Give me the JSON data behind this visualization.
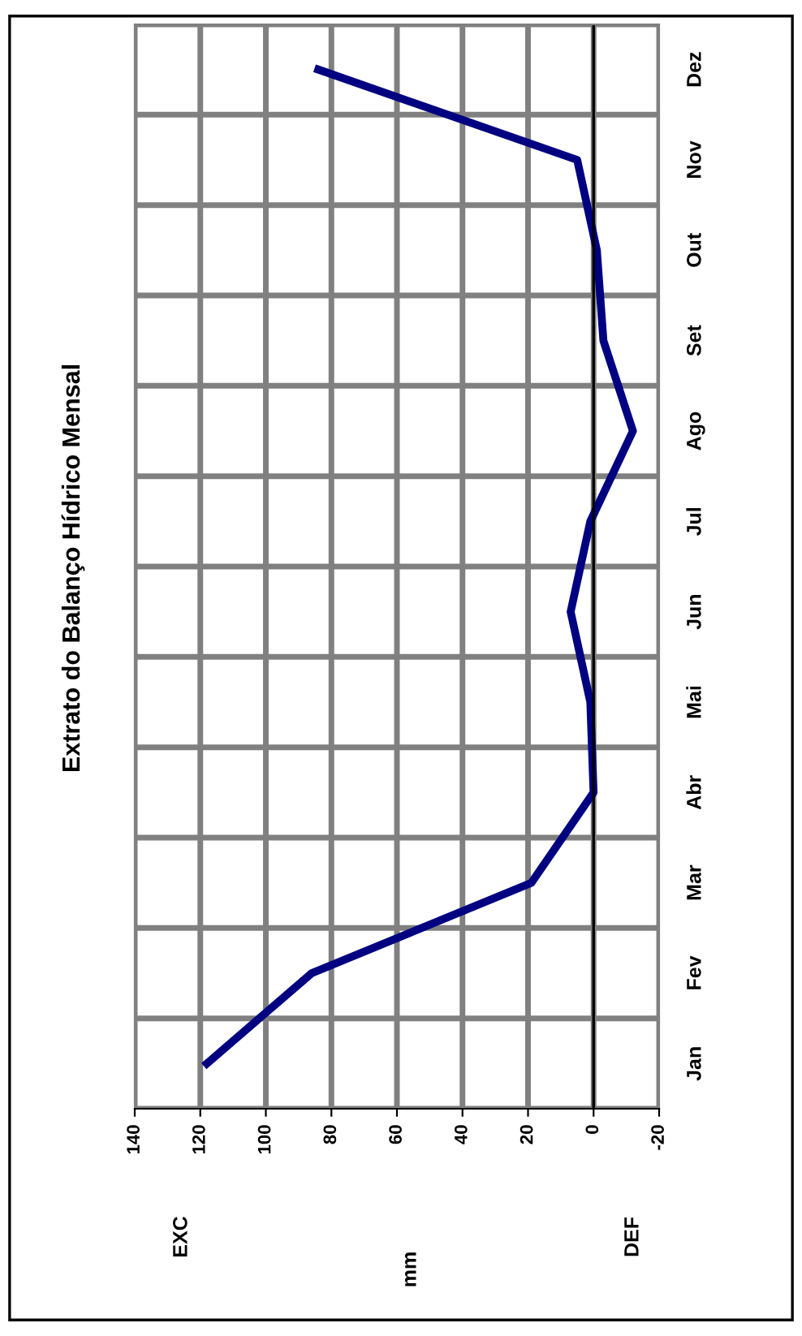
{
  "chart_data": {
    "type": "line",
    "title": "Extrato do Balanço Hídrico Mensal",
    "ylabel": "mm",
    "categories": [
      "Dez",
      "Nov",
      "Out",
      "Set",
      "Ago",
      "Jul",
      "Jun",
      "Mai",
      "Abr",
      "Mar",
      "Fev",
      "Jan"
    ],
    "series": [
      {
        "color": "#000080",
        "values": [
          84,
          5,
          -1,
          -3,
          -12,
          1,
          7,
          1,
          0,
          19,
          86,
          118
        ]
      }
    ],
    "orientation": "horizontal",
    "xlim": [
      140,
      -20
    ],
    "xticks": [
      140,
      120,
      100,
      80,
      60,
      40,
      20,
      0,
      -20
    ],
    "annotations": [
      "EXC",
      "DEF"
    ],
    "grid": true,
    "legend": false,
    "marker": "none",
    "line_style": "solid"
  }
}
